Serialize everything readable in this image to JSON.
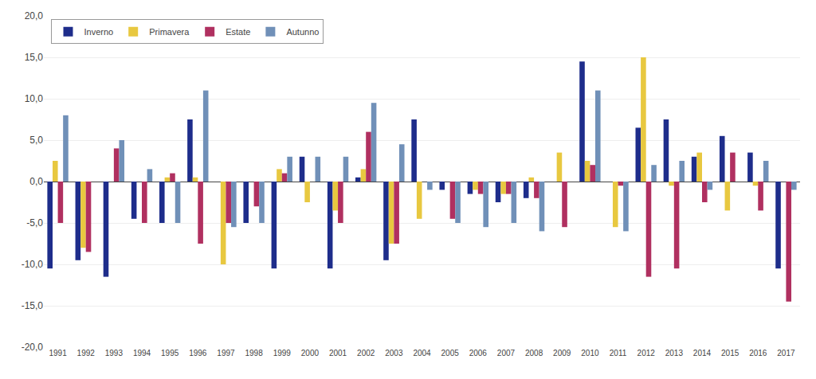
{
  "chart_data": {
    "type": "bar",
    "categories": [
      "1991",
      "1992",
      "1993",
      "1994",
      "1995",
      "1996",
      "1997",
      "1998",
      "1999",
      "2000",
      "2001",
      "2002",
      "2003",
      "2004",
      "2005",
      "2006",
      "2007",
      "2008",
      "2009",
      "2010",
      "2011",
      "2012",
      "2013",
      "2014",
      "2015",
      "2016",
      "2017"
    ],
    "series": [
      {
        "name": "Inverno",
        "color": "#1E2D8B",
        "values": [
          -10.5,
          -9.5,
          -11.5,
          -4.5,
          -5.0,
          7.5,
          0.0,
          -5.0,
          -10.5,
          3.0,
          -10.5,
          0.5,
          -9.5,
          7.5,
          -1.0,
          -1.5,
          -2.5,
          -2.0,
          0.0,
          14.5,
          0.0,
          6.5,
          7.5,
          3.0,
          5.5,
          3.5,
          -10.5
        ]
      },
      {
        "name": "Primavera",
        "color": "#E8C840",
        "values": [
          2.5,
          -8.0,
          0.0,
          0.0,
          0.5,
          0.5,
          -10.0,
          0.0,
          1.5,
          -2.5,
          -3.5,
          1.5,
          -7.5,
          -4.5,
          0.0,
          -1.0,
          -1.5,
          0.5,
          3.5,
          2.5,
          -5.5,
          15.0,
          -0.5,
          3.5,
          -3.5,
          -0.5,
          0.0
        ]
      },
      {
        "name": "Estate",
        "color": "#B03060",
        "values": [
          -5.0,
          -8.5,
          4.0,
          -5.0,
          1.0,
          -7.5,
          -5.0,
          -3.0,
          1.0,
          0.0,
          -5.0,
          6.0,
          -7.5,
          0.0,
          -4.5,
          -1.5,
          -1.5,
          -2.0,
          -5.5,
          2.0,
          -0.5,
          -11.5,
          -10.5,
          -2.5,
          3.5,
          -3.5,
          -14.5
        ]
      },
      {
        "name": "Autunno",
        "color": "#7090B8",
        "values": [
          8.0,
          0.0,
          5.0,
          1.5,
          -5.0,
          11.0,
          -5.5,
          -5.0,
          3.0,
          3.0,
          3.0,
          9.5,
          4.5,
          -1.0,
          -5.0,
          -5.5,
          -5.0,
          -6.0,
          0.0,
          11.0,
          -6.0,
          2.0,
          2.5,
          -1.0,
          0.0,
          2.5,
          -1.0
        ]
      }
    ],
    "ylim": [
      -20.0,
      20.0
    ],
    "yticks": [
      {
        "value": -20.0,
        "label": "-20,0"
      },
      {
        "value": -15.0,
        "label": "-15,0"
      },
      {
        "value": -10.0,
        "label": "-10,0"
      },
      {
        "value": -5.0,
        "label": "-5,0"
      },
      {
        "value": 0.0,
        "label": "0,0"
      },
      {
        "value": 5.0,
        "label": "5,0"
      },
      {
        "value": 10.0,
        "label": "10,0"
      },
      {
        "value": 15.0,
        "label": "15,0"
      },
      {
        "value": 20.0,
        "label": "20,0"
      }
    ],
    "grid": true,
    "legend": "upper left"
  }
}
